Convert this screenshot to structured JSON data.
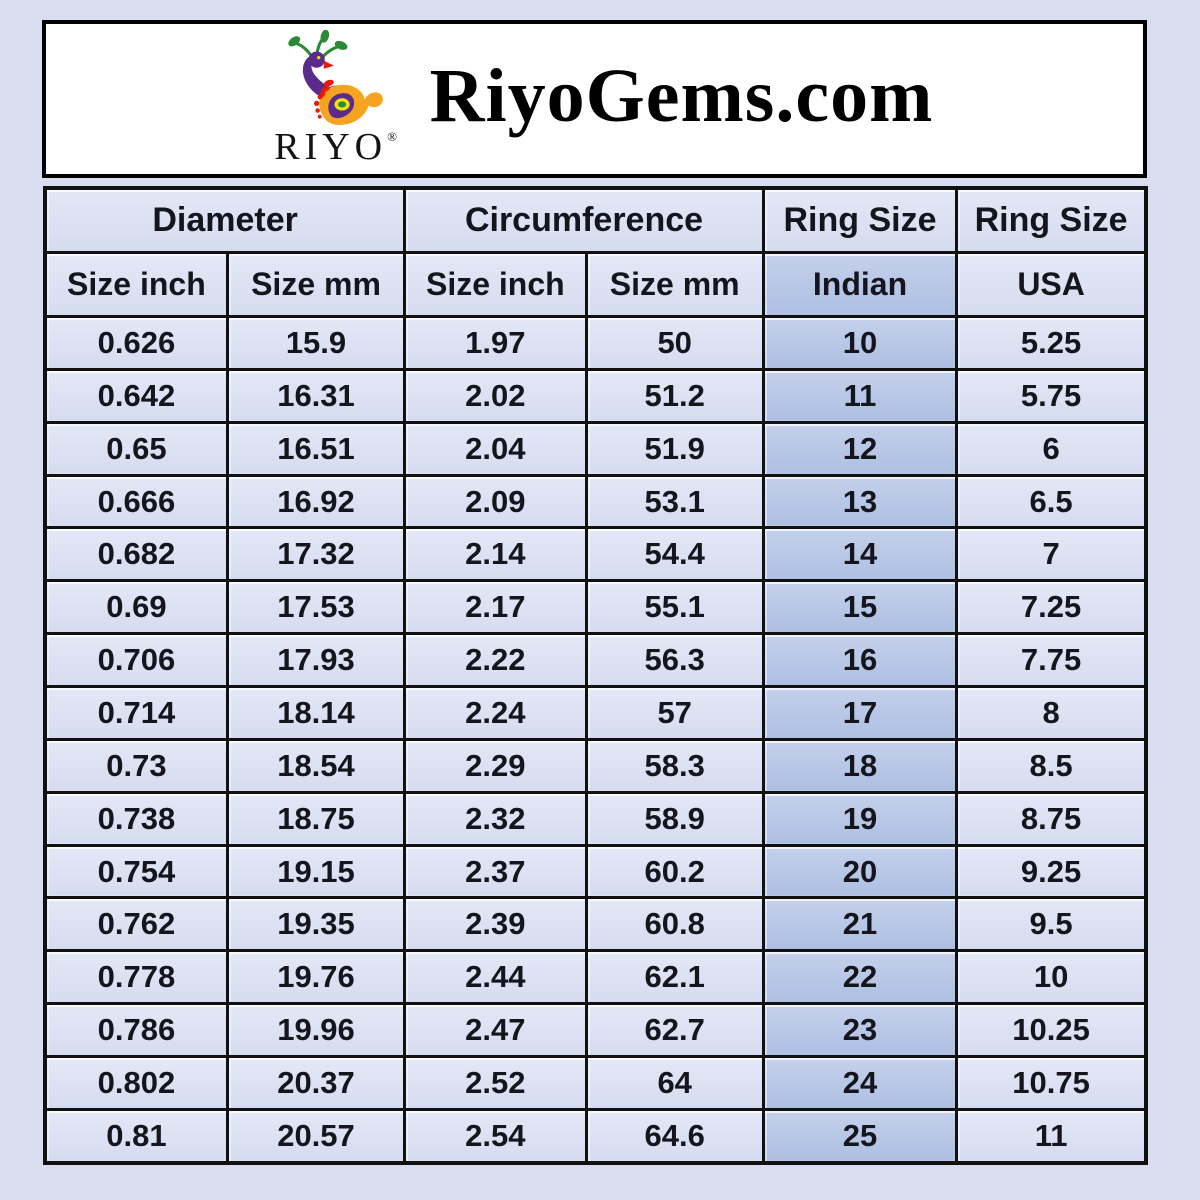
{
  "page": {
    "background": "#d8ddef"
  },
  "header": {
    "brand": "RiyoGems.com",
    "logo_text": "RIYO",
    "registered_mark": "®",
    "logo_colors": {
      "purple": "#5b2b8c",
      "orange": "#f6a41f",
      "green": "#2a8a35",
      "red": "#e81a0a",
      "yellow": "#f2e30e"
    }
  },
  "chart_data": {
    "type": "table",
    "title": "RiyoGems.com",
    "column_groups": [
      {
        "label": "Diameter",
        "span": 2
      },
      {
        "label": "Circumference",
        "span": 2
      },
      {
        "label": "Ring Size",
        "span": 1
      },
      {
        "label": "Ring Size",
        "span": 1
      }
    ],
    "columns": [
      "Size inch",
      "Size mm",
      "Size inch",
      "Size mm",
      "Indian",
      "USA"
    ],
    "highlighted_column": "Indian",
    "highlighted_column_index": 4,
    "rows": [
      [
        "0.626",
        "15.9",
        "1.97",
        "50",
        "10",
        "5.25"
      ],
      [
        "0.642",
        "16.31",
        "2.02",
        "51.2",
        "11",
        "5.75"
      ],
      [
        "0.65",
        "16.51",
        "2.04",
        "51.9",
        "12",
        "6"
      ],
      [
        "0.666",
        "16.92",
        "2.09",
        "53.1",
        "13",
        "6.5"
      ],
      [
        "0.682",
        "17.32",
        "2.14",
        "54.4",
        "14",
        "7"
      ],
      [
        "0.69",
        "17.53",
        "2.17",
        "55.1",
        "15",
        "7.25"
      ],
      [
        "0.706",
        "17.93",
        "2.22",
        "56.3",
        "16",
        "7.75"
      ],
      [
        "0.714",
        "18.14",
        "2.24",
        "57",
        "17",
        "8"
      ],
      [
        "0.73",
        "18.54",
        "2.29",
        "58.3",
        "18",
        "8.5"
      ],
      [
        "0.738",
        "18.75",
        "2.32",
        "58.9",
        "19",
        "8.75"
      ],
      [
        "0.754",
        "19.15",
        "2.37",
        "60.2",
        "20",
        "9.25"
      ],
      [
        "0.762",
        "19.35",
        "2.39",
        "60.8",
        "21",
        "9.5"
      ],
      [
        "0.778",
        "19.76",
        "2.44",
        "62.1",
        "22",
        "10"
      ],
      [
        "0.786",
        "19.96",
        "2.47",
        "62.7",
        "23",
        "10.25"
      ],
      [
        "0.802",
        "20.37",
        "2.52",
        "64",
        "24",
        "10.75"
      ],
      [
        "0.81",
        "20.57",
        "2.54",
        "64.6",
        "25",
        "11"
      ]
    ],
    "colors": {
      "cell_background": "#dbe1f2",
      "highlight_background": "#b7c5e4",
      "border": "#111111",
      "text": "#15151d"
    }
  }
}
